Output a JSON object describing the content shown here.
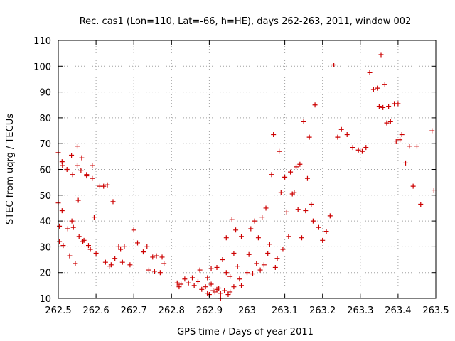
{
  "chart_data": {
    "type": "scatter",
    "title": "Rec. cas1 (Lon=110, Lat=-66, h=HE), days 262-263, 2011, window 002",
    "xlabel": "GPS time / Days of year 2011",
    "ylabel": "STEC from uqrg / TECUs",
    "xlim": [
      262.5,
      263.5
    ],
    "ylim": [
      10,
      110
    ],
    "xticks": [
      "262.5",
      "262.6",
      "262.7",
      "262.8",
      "262.9",
      "263",
      "263.1",
      "263.2",
      "263.3",
      "263.4",
      "263.5"
    ],
    "yticks": [
      "10",
      "20",
      "30",
      "40",
      "50",
      "60",
      "70",
      "80",
      "90",
      "100",
      "110"
    ],
    "grid": true,
    "marker": "plus",
    "color": "#cc0000",
    "x": [
      262.5,
      262.5,
      262.503,
      262.503,
      262.51,
      262.51,
      262.511,
      262.513,
      262.523,
      262.525,
      262.53,
      262.535,
      262.536,
      262.538,
      262.54,
      262.545,
      262.55,
      262.55,
      262.553,
      262.555,
      262.56,
      262.562,
      262.565,
      262.568,
      262.575,
      262.575,
      262.58,
      262.585,
      262.59,
      262.59,
      262.595,
      262.6,
      262.61,
      262.62,
      262.625,
      262.63,
      262.635,
      262.64,
      262.645,
      262.65,
      262.66,
      262.665,
      262.67,
      262.675,
      262.69,
      262.7,
      262.71,
      262.725,
      262.735,
      262.74,
      262.75,
      262.755,
      262.76,
      262.77,
      262.775,
      262.78,
      262.815,
      262.82,
      262.825,
      262.835,
      262.845,
      262.855,
      262.86,
      262.87,
      262.875,
      262.88,
      262.89,
      262.895,
      262.9,
      262.905,
      262.91,
      262.915,
      262.92,
      262.925,
      262.93,
      262.935,
      262.94,
      262.945,
      262.95,
      262.955,
      262.96,
      262.965,
      262.97,
      262.975,
      262.98,
      262.985,
      262.895,
      262.905,
      262.92,
      262.93,
      262.945,
      262.955,
      262.965,
      262.985,
      263.0,
      263.005,
      263.01,
      263.015,
      263.02,
      263.025,
      263.03,
      263.035,
      263.04,
      263.045,
      263.05,
      263.055,
      263.06,
      263.065,
      263.07,
      263.075,
      263.08,
      263.085,
      263.09,
      263.095,
      263.1,
      263.105,
      263.11,
      263.115,
      263.12,
      263.125,
      263.13,
      263.135,
      263.14,
      263.145,
      263.15,
      263.155,
      263.16,
      263.165,
      263.17,
      263.175,
      263.18,
      263.19,
      263.2,
      263.21,
      263.22,
      263.23,
      263.24,
      263.25,
      263.265,
      263.28,
      263.295,
      263.305,
      263.315,
      263.325,
      263.335,
      263.345,
      263.35,
      263.355,
      263.36,
      263.365,
      263.37,
      263.375,
      263.38,
      263.39,
      263.395,
      263.4,
      263.405,
      263.41,
      263.42,
      263.43,
      263.44,
      263.45,
      263.46,
      263.49,
      263.495
    ],
    "y": [
      66.5,
      47.0,
      38.0,
      32.0,
      63.0,
      44.0,
      61.5,
      30.5,
      60.0,
      37.0,
      26.5,
      65.5,
      40.0,
      58.0,
      37.5,
      23.5,
      69.0,
      61.5,
      48.0,
      34.0,
      59.5,
      64.5,
      32.0,
      32.5,
      58.0,
      57.5,
      30.5,
      29.0,
      56.5,
      61.5,
      41.5,
      27.5,
      53.5,
      53.5,
      24.0,
      54.0,
      22.5,
      23.0,
      47.5,
      25.5,
      30.0,
      29.0,
      24.0,
      30.0,
      23.0,
      36.5,
      31.5,
      28.0,
      30.0,
      21.0,
      26.0,
      20.5,
      26.5,
      20.0,
      26.0,
      23.5,
      16.0,
      14.5,
      15.5,
      17.5,
      16.0,
      18.0,
      15.0,
      16.5,
      21.0,
      13.5,
      14.5,
      12.0,
      11.5,
      21.5,
      13.0,
      12.5,
      22.0,
      14.0,
      12.0,
      25.0,
      13.0,
      33.5,
      11.5,
      12.5,
      40.5,
      14.5,
      36.5,
      22.5,
      17.5,
      34.0,
      18.0,
      15.5,
      13.5,
      10.0,
      20.0,
      18.5,
      27.5,
      15.0,
      20.0,
      27.0,
      37.0,
      19.5,
      40.0,
      23.5,
      33.5,
      21.0,
      41.5,
      23.0,
      45.0,
      27.5,
      31.0,
      58.0,
      73.5,
      22.0,
      25.5,
      67.0,
      51.0,
      29.0,
      57.0,
      43.5,
      34.0,
      59.0,
      50.5,
      51.0,
      61.0,
      44.5,
      62.0,
      33.5,
      78.5,
      44.0,
      56.5,
      72.5,
      46.5,
      40.0,
      85.0,
      37.5,
      32.5,
      36.0,
      42.0,
      100.5,
      72.5,
      75.5,
      73.5,
      68.5,
      67.5,
      67.0,
      68.5,
      97.5,
      91.0,
      91.5,
      84.5,
      104.5,
      84.0,
      93.0,
      78.0,
      84.5,
      78.5,
      85.5,
      71.0,
      85.5,
      71.5,
      73.5,
      62.5,
      69.0,
      53.5,
      69.0,
      46.5,
      75.0,
      52.0
    ]
  }
}
